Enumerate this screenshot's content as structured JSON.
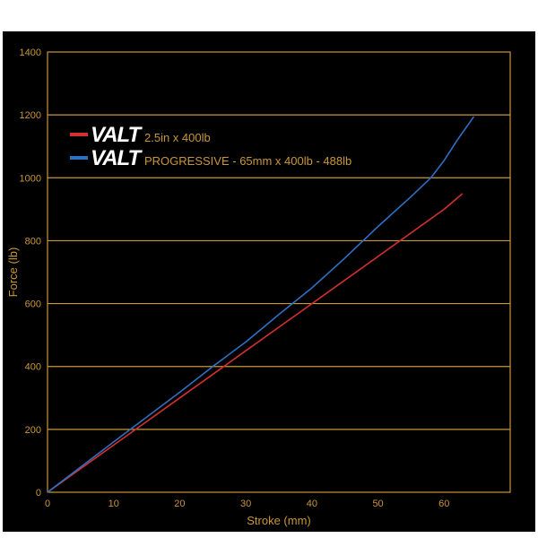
{
  "chart_data": {
    "type": "line",
    "xlabel": "Stroke (mm)",
    "ylabel": "Force (lb)",
    "xlim": [
      0,
      70
    ],
    "ylim": [
      0,
      1400
    ],
    "x_ticks": [
      "0",
      "10",
      "20",
      "30",
      "40",
      "50",
      "60"
    ],
    "y_ticks": [
      "0",
      "200",
      "400",
      "600",
      "800",
      "1000",
      "1200",
      "1400"
    ],
    "grid": true,
    "legend_position": "top-left",
    "series": [
      {
        "brand": "VALT",
        "name": "2.5in x 400lb",
        "color": "#d4302f",
        "x": [
          0,
          10,
          20,
          30,
          40,
          50,
          60,
          62.8
        ],
        "y": [
          0,
          150,
          300,
          450,
          600,
          750,
          900,
          950
        ]
      },
      {
        "brand": "VALT",
        "name": "PROGRESSIVE - 65mm x 400lb - 488lb",
        "color": "#2f6fc4",
        "x": [
          0,
          10,
          20,
          25,
          30,
          35,
          40,
          45,
          50,
          55,
          58,
          60,
          62,
          64.5
        ],
        "y": [
          0,
          160,
          318,
          400,
          478,
          565,
          650,
          745,
          845,
          940,
          1000,
          1055,
          1120,
          1195
        ]
      }
    ]
  }
}
